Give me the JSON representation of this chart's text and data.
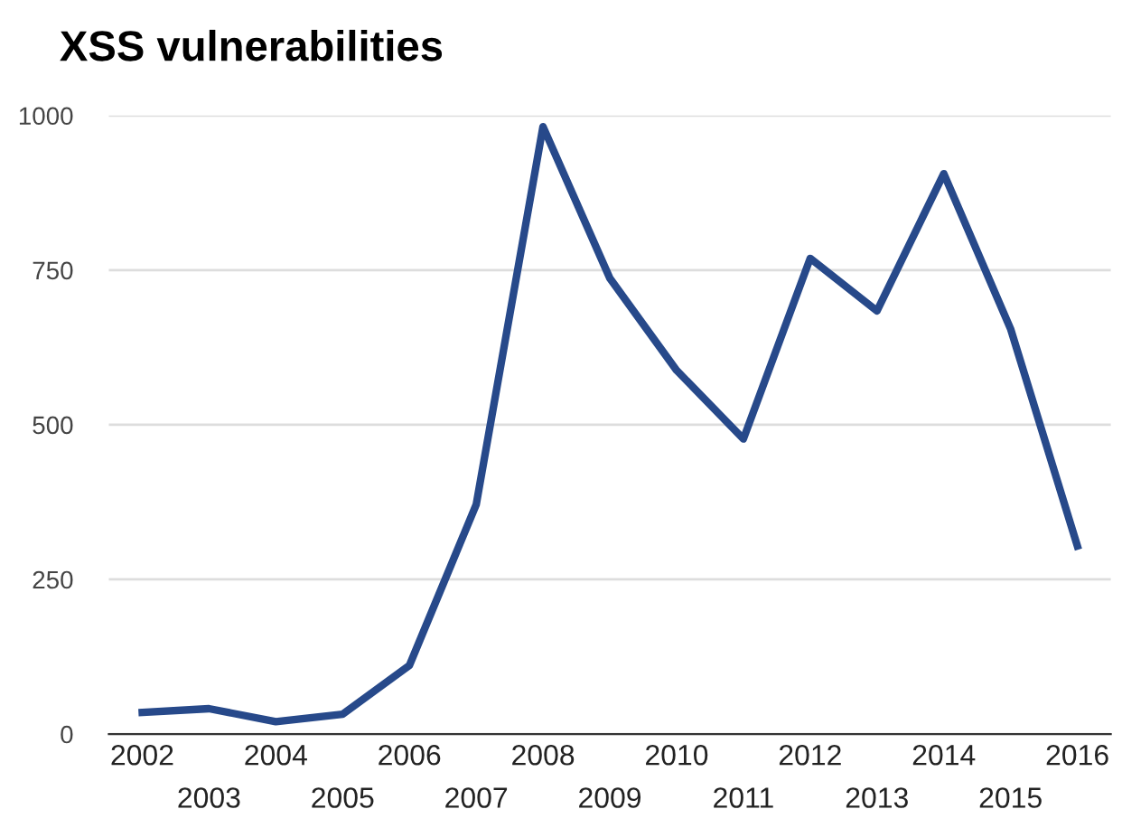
{
  "chart_data": {
    "type": "line",
    "title": "XSS vulnerabilities",
    "categories": [
      "2002",
      "2003",
      "2004",
      "2005",
      "2006",
      "2007",
      "2008",
      "2009",
      "2010",
      "2011",
      "2012",
      "2013",
      "2014",
      "2015",
      "2016"
    ],
    "series": [
      {
        "color": "#27498a",
        "values": [
          35,
          41,
          20,
          32,
          111,
          371,
          982,
          737,
          588,
          477,
          769,
          684,
          906,
          655,
          304
        ]
      }
    ],
    "ylim": [
      0,
      1000
    ],
    "yticks": [
      0,
      250,
      500,
      750,
      1000
    ],
    "grid": "y",
    "legend": false,
    "marker": "none",
    "line_style": "solid"
  }
}
